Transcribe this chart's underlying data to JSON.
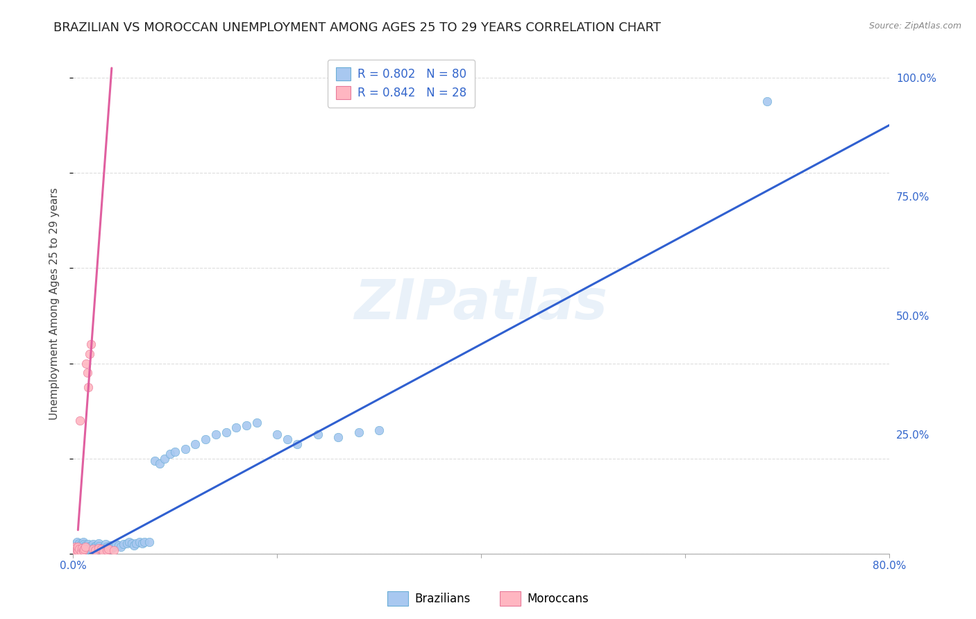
{
  "title": "BRAZILIAN VS MOROCCAN UNEMPLOYMENT AMONG AGES 25 TO 29 YEARS CORRELATION CHART",
  "source": "Source: ZipAtlas.com",
  "ylabel": "Unemployment Among Ages 25 to 29 years",
  "xlim": [
    0.0,
    0.8
  ],
  "ylim": [
    0.0,
    1.05
  ],
  "xticks": [
    0.0,
    0.2,
    0.4,
    0.6,
    0.8
  ],
  "xticklabels": [
    "0.0%",
    "",
    "",
    "",
    "80.0%"
  ],
  "ytick_positions": [
    0.0,
    0.25,
    0.5,
    0.75,
    1.0
  ],
  "yticklabels": [
    "",
    "25.0%",
    "50.0%",
    "75.0%",
    "100.0%"
  ],
  "watermark": "ZIPatlas",
  "brazil_color": "#a8c8f0",
  "brazil_edge": "#6baed6",
  "morocco_color": "#ffb6c1",
  "morocco_edge": "#e87a9a",
  "brazil_line_color": "#3060d0",
  "morocco_line_color": "#e060a0",
  "legend_brazil_R": "0.802",
  "legend_brazil_N": "80",
  "legend_morocco_R": "0.842",
  "legend_morocco_N": "28",
  "brazil_scatter_x": [
    0.001,
    0.002,
    0.003,
    0.003,
    0.004,
    0.004,
    0.005,
    0.005,
    0.006,
    0.006,
    0.007,
    0.007,
    0.008,
    0.008,
    0.009,
    0.009,
    0.01,
    0.01,
    0.011,
    0.011,
    0.012,
    0.012,
    0.013,
    0.014,
    0.015,
    0.015,
    0.016,
    0.017,
    0.018,
    0.019,
    0.02,
    0.021,
    0.022,
    0.023,
    0.024,
    0.025,
    0.026,
    0.027,
    0.028,
    0.03,
    0.032,
    0.033,
    0.035,
    0.037,
    0.038,
    0.04,
    0.042,
    0.045,
    0.047,
    0.05,
    0.053,
    0.055,
    0.058,
    0.06,
    0.062,
    0.065,
    0.068,
    0.07,
    0.075,
    0.08,
    0.085,
    0.09,
    0.095,
    0.1,
    0.11,
    0.12,
    0.13,
    0.14,
    0.15,
    0.16,
    0.17,
    0.18,
    0.2,
    0.21,
    0.22,
    0.24,
    0.26,
    0.28,
    0.3,
    0.68
  ],
  "brazil_scatter_y": [
    0.01,
    0.02,
    0.008,
    0.015,
    0.012,
    0.025,
    0.005,
    0.018,
    0.01,
    0.022,
    0.008,
    0.016,
    0.012,
    0.02,
    0.009,
    0.018,
    0.015,
    0.025,
    0.01,
    0.02,
    0.008,
    0.018,
    0.015,
    0.012,
    0.01,
    0.02,
    0.015,
    0.012,
    0.018,
    0.015,
    0.02,
    0.015,
    0.01,
    0.018,
    0.012,
    0.022,
    0.016,
    0.012,
    0.01,
    0.015,
    0.02,
    0.015,
    0.01,
    0.018,
    0.012,
    0.015,
    0.02,
    0.018,
    0.015,
    0.02,
    0.022,
    0.025,
    0.022,
    0.018,
    0.022,
    0.025,
    0.022,
    0.025,
    0.025,
    0.195,
    0.19,
    0.2,
    0.21,
    0.215,
    0.22,
    0.23,
    0.24,
    0.25,
    0.255,
    0.265,
    0.27,
    0.275,
    0.25,
    0.24,
    0.23,
    0.25,
    0.245,
    0.255,
    0.26,
    0.95
  ],
  "morocco_scatter_x": [
    0.001,
    0.002,
    0.002,
    0.003,
    0.003,
    0.004,
    0.005,
    0.005,
    0.006,
    0.007,
    0.008,
    0.009,
    0.01,
    0.011,
    0.012,
    0.013,
    0.014,
    0.015,
    0.016,
    0.018,
    0.02,
    0.022,
    0.025,
    0.028,
    0.03,
    0.033,
    0.035,
    0.04
  ],
  "morocco_scatter_y": [
    0.01,
    0.005,
    0.015,
    0.008,
    0.012,
    0.01,
    0.008,
    0.015,
    0.01,
    0.28,
    0.005,
    0.012,
    0.008,
    0.01,
    0.015,
    0.4,
    0.38,
    0.35,
    0.42,
    0.44,
    0.01,
    0.008,
    0.012,
    0.01,
    0.005,
    0.008,
    0.01,
    0.008
  ],
  "brazil_line_x": [
    0.0,
    0.8
  ],
  "brazil_line_y": [
    -0.02,
    0.9
  ],
  "morocco_line_x": [
    0.005,
    0.038
  ],
  "morocco_line_y": [
    0.05,
    1.02
  ],
  "grid_color": "#dddddd",
  "title_fontsize": 13,
  "axis_label_fontsize": 11,
  "tick_fontsize": 11,
  "legend_fontsize": 12,
  "marker_size": 80
}
